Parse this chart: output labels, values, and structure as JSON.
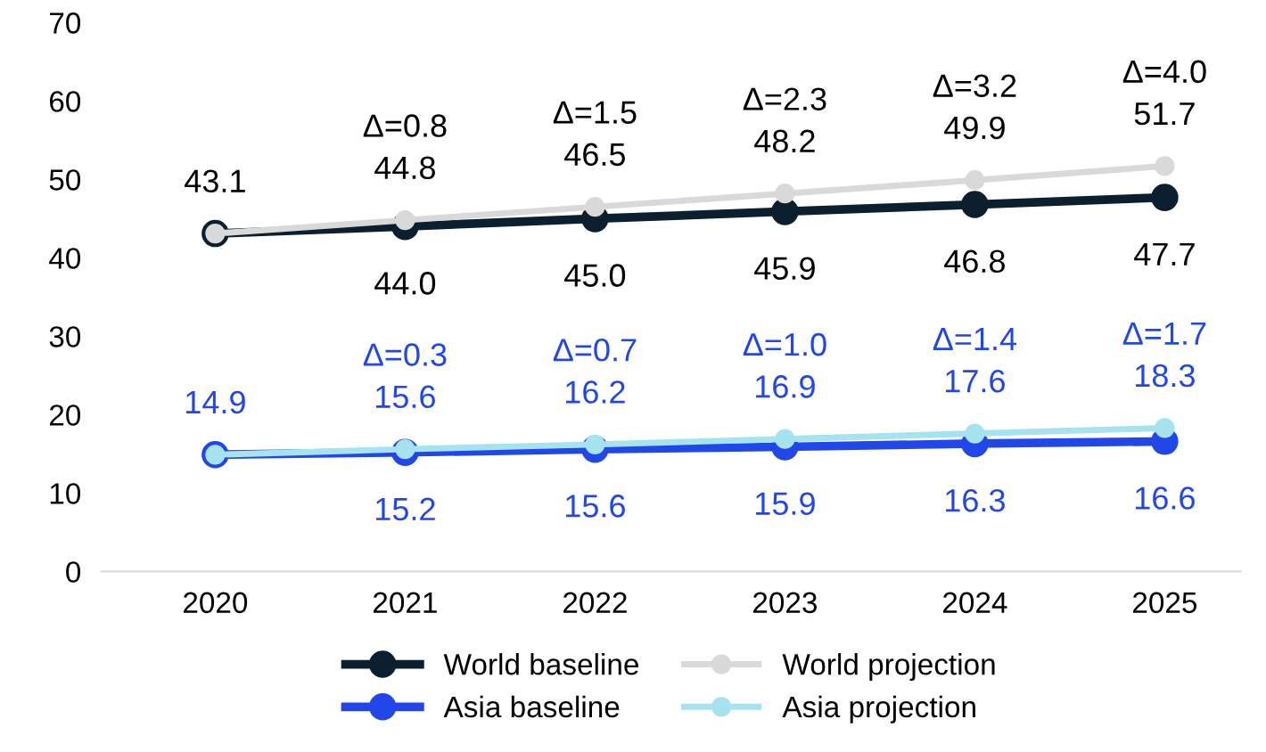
{
  "chart_data": {
    "type": "line",
    "categories": [
      "2020",
      "2021",
      "2022",
      "2023",
      "2024",
      "2025"
    ],
    "series": [
      {
        "name": "World baseline",
        "color": "#0b1f2e",
        "values": [
          43.1,
          44.0,
          45.0,
          45.9,
          46.8,
          47.7
        ],
        "value_labels": [
          null,
          "44.0",
          "45.0",
          "45.9",
          "46.8",
          "47.7"
        ]
      },
      {
        "name": "World projection",
        "color": "#d9d9d9",
        "values": [
          43.1,
          44.8,
          46.5,
          48.2,
          49.9,
          51.7
        ],
        "value_labels": [
          "43.1",
          "44.8",
          "46.5",
          "48.2",
          "49.9",
          "51.7"
        ]
      },
      {
        "name": "Asia baseline",
        "color": "#2247e8",
        "values": [
          14.9,
          15.2,
          15.6,
          15.9,
          16.3,
          16.6
        ],
        "value_labels": [
          null,
          "15.2",
          "15.6",
          "15.9",
          "16.3",
          "16.6"
        ]
      },
      {
        "name": "Asia projection",
        "color": "#a6e3ee",
        "values": [
          14.9,
          15.6,
          16.2,
          16.9,
          17.6,
          18.3
        ],
        "value_labels": [
          "14.9",
          "15.6",
          "16.2",
          "16.9",
          "17.6",
          "18.3"
        ]
      }
    ],
    "annotations": [
      {
        "text": "Δ=0.8",
        "x": "2021",
        "y": 44.8
      },
      {
        "text": "Δ=1.5",
        "x": "2022",
        "y": 46.5
      },
      {
        "text": "Δ=2.3",
        "x": "2023",
        "y": 48.2
      },
      {
        "text": "Δ=3.2",
        "x": "2024",
        "y": 49.9
      },
      {
        "text": "Δ=4.0",
        "x": "2025",
        "y": 51.7
      },
      {
        "text": "Δ=0.3",
        "x": "2021",
        "y": 15.6
      },
      {
        "text": "Δ=0.7",
        "x": "2022",
        "y": 16.2
      },
      {
        "text": "Δ=1.0",
        "x": "2023",
        "y": 16.9
      },
      {
        "text": "Δ=1.4",
        "x": "2024",
        "y": 17.6
      },
      {
        "text": "Δ=1.7",
        "x": "2025",
        "y": 18.3
      }
    ],
    "ylim": [
      0,
      70
    ],
    "yticks": [
      0,
      10,
      20,
      30,
      40,
      50,
      60,
      70
    ],
    "grid": false,
    "legend": "bottom",
    "marker": "circle",
    "line_style": "solid"
  }
}
